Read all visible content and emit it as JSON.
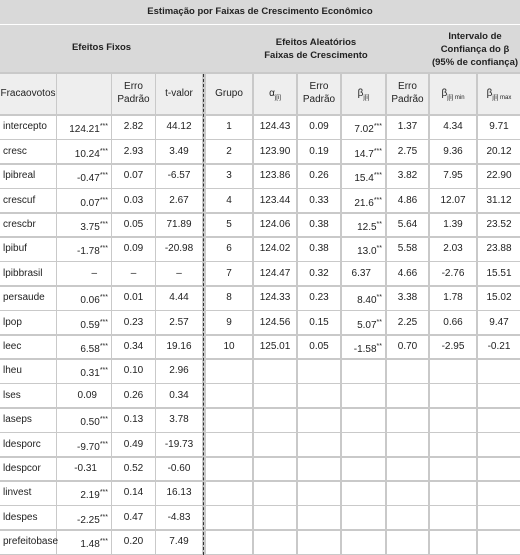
{
  "title": "Estimação por Faixas de Crescimento Econômico",
  "groups": {
    "fixed": [
      "Efeitos Fixos"
    ],
    "random": [
      "Efeitos Aleatórios",
      "Faixas de Crescimento"
    ],
    "interval": [
      "Intervalo de",
      "Confiança do β",
      "(95% de confiança)"
    ]
  },
  "left_headers": {
    "name": [
      "Fracaovotos"
    ],
    "se": [
      "Erro",
      "Padrão"
    ],
    "t": [
      "t-valor"
    ]
  },
  "right_headers": {
    "group": [
      "Grupo"
    ],
    "alpha": {
      "text": "α",
      "sub": "j[i]"
    },
    "se_alpha": [
      "Erro",
      "Padrão"
    ],
    "beta": {
      "text": "β",
      "sub": "j[i]"
    },
    "se_beta": [
      "Erro",
      "Padrão"
    ],
    "min": {
      "text": "β",
      "sub": "j[i] min"
    },
    "max": {
      "text": "β",
      "sub": "j[i] max"
    }
  },
  "left_rows": [
    {
      "name": "intercepto",
      "coef": "124.21",
      "stars": "***",
      "se": "2.82",
      "t": "44.12"
    },
    {
      "name": "cresc",
      "coef": "10.24",
      "stars": "***",
      "se": "2.93",
      "t": "3.49"
    },
    {
      "name": "lpibreal",
      "coef": "-0.47",
      "stars": "***",
      "se": "0.07",
      "t": "-6.57"
    },
    {
      "name": "crescuf",
      "coef": "0.07",
      "stars": "***",
      "se": "0.03",
      "t": "2.67"
    },
    {
      "name": "crescbr",
      "coef": "3.75",
      "stars": "***",
      "se": "0.05",
      "t": "71.89"
    },
    {
      "name": "lpibuf",
      "coef": "-1.78",
      "stars": "***",
      "se": "0.09",
      "t": "-20.98"
    },
    {
      "name": "lpibbrasil",
      "coef": "–",
      "se": "–",
      "t": "–"
    },
    {
      "name": "persaude",
      "coef": "0.06",
      "stars": "***",
      "se": "0.01",
      "t": "4.44"
    },
    {
      "name": "lpop",
      "coef": "0.59",
      "stars": "***",
      "se": "0.23",
      "t": "2.57"
    },
    {
      "name": "leec",
      "coef": "6.58",
      "stars": "***",
      "se": "0.34",
      "t": "19.16"
    },
    {
      "name": "lheu",
      "coef": "0.31",
      "stars": "***",
      "se": "0.10",
      "t": "2.96"
    },
    {
      "name": "lses",
      "coef": "0.09",
      "se": "0.26",
      "t": "0.34"
    },
    {
      "name": "laseps",
      "coef": "0.50",
      "stars": "***",
      "se": "0.13",
      "t": "3.78"
    },
    {
      "name": "ldesporc",
      "coef": "-9.70",
      "stars": "***",
      "se": "0.49",
      "t": "-19.73"
    },
    {
      "name": "ldespcor",
      "coef": "-0.31",
      "se": "0.52",
      "t": "-0.60"
    },
    {
      "name": "linvest",
      "coef": "2.19",
      "stars": "***",
      "se": "0.14",
      "t": "16.13"
    },
    {
      "name": "ldespes",
      "coef": "-2.25",
      "stars": "***",
      "se": "0.47",
      "t": "-4.83"
    },
    {
      "name": "prefeitobase",
      "coef": "1.48",
      "stars": "***",
      "se": "0.20",
      "t": "7.49"
    }
  ],
  "right_rows": [
    {
      "group": "1",
      "alpha": "124.43",
      "se_alpha": "0.09",
      "beta": "7.02",
      "stars": "***",
      "se_beta": "1.37",
      "min": "4.34",
      "max": "9.71"
    },
    {
      "group": "2",
      "alpha": "123.90",
      "se_alpha": "0.19",
      "beta": "14.7",
      "stars": "***",
      "se_beta": "2.75",
      "min": "9.36",
      "max": "20.12"
    },
    {
      "group": "3",
      "alpha": "123.86",
      "se_alpha": "0.26",
      "beta": "15.4",
      "stars": "***",
      "se_beta": "3.82",
      "min": "7.95",
      "max": "22.90"
    },
    {
      "group": "4",
      "alpha": "123.44",
      "se_alpha": "0.33",
      "beta": "21.6",
      "stars": "***",
      "se_beta": "4.86",
      "min": "12.07",
      "max": "31.12"
    },
    {
      "group": "5",
      "alpha": "124.06",
      "se_alpha": "0.38",
      "beta": "12.5",
      "stars": "**",
      "se_beta": "5.64",
      "min": "1.39",
      "max": "23.52"
    },
    {
      "group": "6",
      "alpha": "124.02",
      "se_alpha": "0.38",
      "beta": "13.0",
      "stars": "**",
      "se_beta": "5.58",
      "min": "2.03",
      "max": "23.88"
    },
    {
      "group": "7",
      "alpha": "124.47",
      "se_alpha": "0.32",
      "beta": "6.37",
      "se_beta": "4.66",
      "min": "-2.76",
      "max": "15.51"
    },
    {
      "group": "8",
      "alpha": "124.33",
      "se_alpha": "0.23",
      "beta": "8.40",
      "stars": "**",
      "se_beta": "3.38",
      "min": "1.78",
      "max": "15.02"
    },
    {
      "group": "9",
      "alpha": "124.56",
      "se_alpha": "0.15",
      "beta": "5.07",
      "stars": "**",
      "se_beta": "2.25",
      "min": "0.66",
      "max": "9.47"
    },
    {
      "group": "10",
      "alpha": "125.01",
      "se_alpha": "0.05",
      "beta": "-1.58",
      "stars": "**",
      "se_beta": "0.70",
      "min": "-2.95",
      "max": "-0.21"
    }
  ]
}
